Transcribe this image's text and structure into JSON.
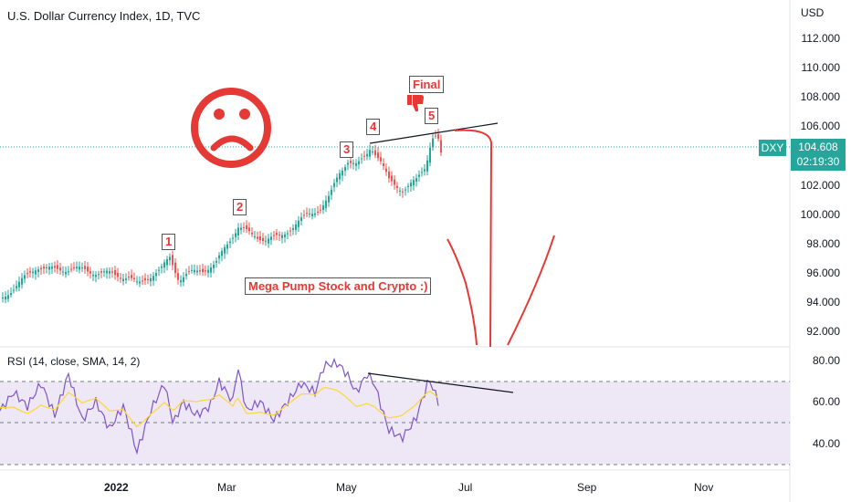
{
  "header": {
    "title": "U.S. Dollar Currency Index, 1D, TVC"
  },
  "price_axis": {
    "currency": "USD",
    "labels": [
      "112.000",
      "110.000",
      "108.000",
      "106.000",
      "102.000",
      "100.000",
      "98.000",
      "96.000",
      "94.000",
      "92.000"
    ]
  },
  "current_price": {
    "symbol": "DXY",
    "price": "104.608",
    "countdown": "02:19:30"
  },
  "rsi": {
    "title": "RSI (14, close, SMA, 14, 2)",
    "labels": [
      "80.00",
      "60.00",
      "40.00"
    ]
  },
  "time_axis": {
    "labels": [
      "2022",
      "Mar",
      "May",
      "Jul",
      "Sep",
      "Nov"
    ]
  },
  "annotations": {
    "wave_labels": [
      "1",
      "2",
      "3",
      "4",
      "5"
    ],
    "final_label": "Final",
    "pump_text": "Mega Pump Stock and Crypto :)",
    "sad_face_icon": "sad-face-icon",
    "thumbs_down_icon": "thumbs-down-icon"
  },
  "colors": {
    "up_candle": "#26a69a",
    "down_candle": "#ef5350",
    "rsi_line": "#7e57c2",
    "rsi_ma": "#fdd835",
    "annotation_red": "#e53935",
    "rsi_band": "#ede7f6"
  }
}
